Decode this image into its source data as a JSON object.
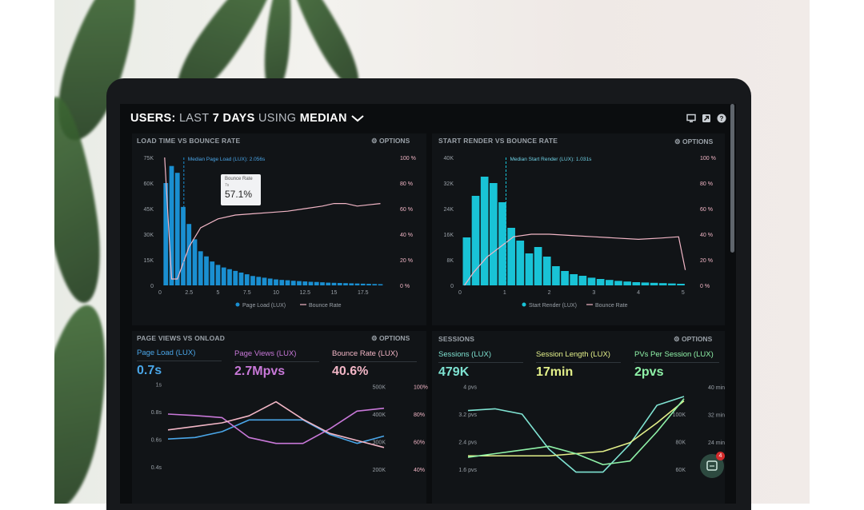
{
  "header": {
    "part_users": "USERS:",
    "part_last": "LAST",
    "part_days": "7 DAYS",
    "part_using": "USING",
    "part_median": "MEDIAN",
    "dropdown_icon": "chevron-down-icon",
    "icons": [
      "monitor-icon",
      "share-icon",
      "help-icon"
    ]
  },
  "chart1": {
    "title": "LOAD TIME VS BOUNCE RATE",
    "options_label": "OPTIONS",
    "marker_label": "Median Page Load (LUX): 2.056s",
    "tooltip_title": "Bounce Rate",
    "tooltip_sub": "7s",
    "tooltip_value": "57.1%",
    "legend": [
      "Page Load (LUX)",
      "Bounce Rate"
    ]
  },
  "chart2": {
    "title": "START RENDER VS BOUNCE RATE",
    "options_label": "OPTIONS",
    "marker_label": "Median Start Render (LUX): 1.031s",
    "legend": [
      "Start Render (LUX)",
      "Bounce Rate"
    ]
  },
  "panel3": {
    "title": "PAGE VIEWS VS ONLOAD",
    "options_label": "OPTIONS",
    "stats": [
      {
        "label": "Page Load (LUX)",
        "value": "0.7s"
      },
      {
        "label": "Page Views (LUX)",
        "value": "2.7Mpvs"
      },
      {
        "label": "Bounce Rate (LUX)",
        "value": "40.6%"
      }
    ]
  },
  "panel4": {
    "title": "SESSIONS",
    "options_label": "OPTIONS",
    "stats": [
      {
        "label": "Sessions (LUX)",
        "value": "479K"
      },
      {
        "label": "Session Length (LUX)",
        "value": "17min"
      },
      {
        "label": "PVs Per Session (LUX)",
        "value": "2pvs"
      }
    ]
  },
  "chat_badge": "4",
  "colors": {
    "bar_blue": "#1a8fd1",
    "bar_teal": "#19c3d6",
    "bounce_pink": "#f2b6c6",
    "stat_blue": "#4aa6e8",
    "stat_purple": "#c878d8",
    "stat_pink": "#f2b6c6",
    "stat_teal": "#7fe3d2",
    "stat_yellow": "#e3f08a",
    "stat_green": "#8ff2a8"
  },
  "chart_data": [
    {
      "type": "bar",
      "x": [
        0.5,
        1,
        1.5,
        2,
        2.5,
        3,
        3.5,
        4,
        4.5,
        5,
        5.5,
        6,
        6.5,
        7,
        7.5,
        8,
        8.5,
        9,
        9.5,
        10,
        10.5,
        11,
        11.5,
        12,
        12.5,
        13,
        13.5,
        14,
        14.5,
        15,
        15.5,
        16,
        16.5,
        17,
        17.5,
        18,
        18.5,
        19
      ],
      "values": [
        60,
        70,
        66,
        46,
        36,
        27,
        20,
        17,
        14,
        12,
        10.5,
        9.5,
        8.5,
        7.5,
        6.5,
        5.5,
        5,
        4.5,
        4,
        3.5,
        3.2,
        3,
        2.7,
        2.5,
        2.3,
        2.1,
        2,
        1.8,
        1.6,
        1.5,
        1.4,
        1.3,
        1.2,
        1.1,
        1,
        0.9,
        0.8,
        0.7
      ],
      "series": [
        {
          "name": "Page Load (LUX)",
          "kind": "bar",
          "unit": "K"
        },
        {
          "name": "Bounce Rate",
          "kind": "line",
          "unit": "%",
          "x": [
            0.4,
            1,
            1.5,
            2.5,
            3.5,
            5,
            6.5,
            8,
            9.5,
            11,
            12.5,
            14,
            15,
            16,
            17,
            18,
            19
          ],
          "values": [
            100,
            5,
            5,
            30,
            45,
            52,
            55,
            56,
            57,
            58,
            60,
            62,
            64,
            64,
            62,
            63,
            64
          ]
        }
      ],
      "x_ticks": [
        "0",
        "2.5",
        "5",
        "7.5",
        "10",
        "12.5",
        "15",
        "17.5"
      ],
      "y_ticks": [
        "0",
        "15K",
        "30K",
        "45K",
        "60K",
        "75K"
      ],
      "y2_ticks": [
        "0 %",
        "20 %",
        "40 %",
        "60 %",
        "80 %",
        "100 %"
      ],
      "xlim": [
        0,
        20
      ],
      "ylim": [
        0,
        75
      ],
      "y2lim": [
        0,
        100
      ],
      "marker_x": 2.056
    },
    {
      "type": "bar",
      "x": [
        0.15,
        0.35,
        0.55,
        0.75,
        0.95,
        1.15,
        1.35,
        1.55,
        1.75,
        1.95,
        2.15,
        2.35,
        2.55,
        2.75,
        2.95,
        3.15,
        3.35,
        3.55,
        3.75,
        3.95,
        4.15,
        4.35,
        4.55,
        4.75,
        4.95
      ],
      "values": [
        15,
        28,
        34,
        32,
        26,
        18,
        14,
        10,
        12,
        9,
        6,
        4.5,
        3.5,
        3,
        2.4,
        2,
        1.7,
        1.4,
        1.2,
        1,
        0.9,
        0.8,
        0.7,
        0.6,
        0.5
      ],
      "series": [
        {
          "name": "Start Render (LUX)",
          "kind": "bar",
          "unit": "K"
        },
        {
          "name": "Bounce Rate",
          "kind": "line",
          "unit": "%",
          "x": [
            0.1,
            0.3,
            0.6,
            0.9,
            1.2,
            1.6,
            2,
            2.5,
            3,
            3.5,
            4,
            4.5,
            4.9,
            5.05
          ],
          "values": [
            0,
            10,
            22,
            30,
            38,
            40,
            40,
            39,
            38,
            37,
            36,
            37,
            38,
            12
          ]
        }
      ],
      "x_ticks": [
        "0",
        "1",
        "2",
        "3",
        "4",
        "5"
      ],
      "y_ticks": [
        "0",
        "8K",
        "16K",
        "24K",
        "32K",
        "40K"
      ],
      "y2_ticks": [
        "0 %",
        "20 %",
        "40 %",
        "60 %",
        "80 %",
        "100 %"
      ],
      "xlim": [
        0,
        5.2
      ],
      "ylim": [
        0,
        40
      ],
      "y2lim": [
        0,
        100
      ],
      "marker_x": 1.031
    },
    {
      "type": "line",
      "x": [
        0,
        1,
        2,
        3,
        4,
        5,
        6,
        7,
        8
      ],
      "series": [
        {
          "name": "Page Load (LUX)",
          "values": [
            0.65,
            0.66,
            0.7,
            0.78,
            0.78,
            0.78,
            0.68,
            0.62,
            0.67
          ]
        },
        {
          "name": "Page Views (LUX)",
          "values": [
            410,
            405,
            398,
            330,
            310,
            310,
            360,
            420,
            430
          ]
        },
        {
          "name": "Bounce Rate (LUX)",
          "values": [
            23,
            24,
            25,
            27,
            31,
            26,
            22,
            20,
            18
          ]
        }
      ],
      "y_ticks": [
        "0.4s",
        "0.6s",
        "0.8s",
        "1s"
      ],
      "y2_ticks": [
        "200K",
        "300K",
        "400K",
        "500K"
      ],
      "y3_ticks": [
        "40%",
        "60%",
        "80%",
        "100%"
      ]
    },
    {
      "type": "line",
      "x": [
        0,
        1,
        2,
        3,
        4,
        5,
        6,
        7,
        8
      ],
      "series": [
        {
          "name": "Sessions (LUX)",
          "values": [
            37,
            38,
            35,
            15,
            2,
            2,
            18,
            40,
            45
          ]
        },
        {
          "name": "Session Length (LUX)",
          "values": [
            9,
            9,
            9,
            9,
            10,
            11,
            15,
            24,
            34
          ]
        },
        {
          "name": "PVs Per Session (LUX)",
          "values": [
            1.7,
            1.8,
            1.9,
            2,
            1.8,
            1.5,
            1.6,
            2.4,
            3.3
          ]
        }
      ],
      "y_ticks": [
        "1.6 pvs",
        "2.4 pvs",
        "3.2 pvs",
        "4 pvs"
      ],
      "y2_ticks": [
        "60K",
        "80K",
        "100K"
      ],
      "y3_ticks": [
        "24 min",
        "32 min",
        "40 min"
      ]
    }
  ]
}
